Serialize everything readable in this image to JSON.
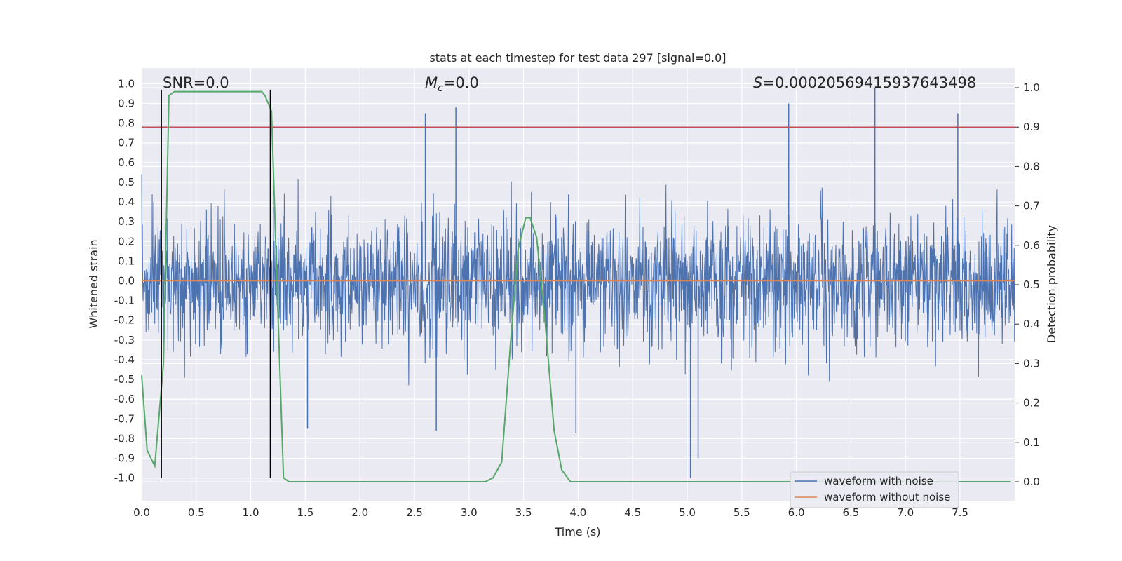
{
  "chart_data": {
    "type": "line",
    "title": "stats at each timestep for test data 297 [signal=0.0]",
    "xlabel": "Time (s)",
    "ylabel": "Whitened strain",
    "y2label": "Detection probability",
    "xlim": [
      0.0,
      8.0
    ],
    "ylim": [
      -1.1,
      1.06
    ],
    "y2lim": [
      -0.05,
      1.03
    ],
    "xticks": [
      "0.0",
      "0.5",
      "1.0",
      "1.5",
      "2.0",
      "2.5",
      "3.0",
      "3.5",
      "4.0",
      "4.5",
      "5.0",
      "5.5",
      "6.0",
      "6.5",
      "7.0",
      "7.5"
    ],
    "yticks": [
      "1.0",
      "0.9",
      "0.8",
      "0.7",
      "0.6",
      "0.5",
      "0.4",
      "0.3",
      "0.2",
      "0.1",
      "0.0",
      "-0.1",
      "-0.2",
      "-0.3",
      "-0.4",
      "-0.5",
      "-0.6",
      "-0.7",
      "-0.8",
      "-0.9",
      "-1.0"
    ],
    "y2ticks": [
      "0.0",
      "0.1",
      "0.2",
      "0.3",
      "0.4",
      "0.5",
      "0.6",
      "0.7",
      "0.8",
      "0.9",
      "1.0"
    ],
    "grid": true,
    "legend_position": "lower-right",
    "annotations": {
      "snr": "SNR=0.0",
      "mc_symbol": "M",
      "mc_sub": "c",
      "mc_value": "=0.0",
      "s_symbol": "S",
      "s_value": "=0.00020569415937643498"
    },
    "series": [
      {
        "name": "waveform with noise",
        "axis": "left",
        "color": "#4c72b0",
        "description_values": {
          "mean": 0.0,
          "typical_range": [
            -0.45,
            0.5
          ],
          "peaks": [
            {
              "x": 2.6,
              "y": 0.85
            },
            {
              "x": 2.88,
              "y": 0.88
            },
            {
              "x": 5.93,
              "y": 0.9
            },
            {
              "x": 6.72,
              "y": 0.98
            },
            {
              "x": 7.48,
              "y": 0.85
            },
            {
              "x": 5.03,
              "y": -1.0
            },
            {
              "x": 5.1,
              "y": -0.9
            },
            {
              "x": 2.7,
              "y": -0.76
            },
            {
              "x": 3.98,
              "y": -0.77
            },
            {
              "x": 1.52,
              "y": -0.75
            }
          ]
        }
      },
      {
        "name": "waveform without noise",
        "axis": "left",
        "color": "#dd8452",
        "x": [
          0.0,
          8.0
        ],
        "y": [
          0.0,
          0.0
        ]
      },
      {
        "name": "",
        "axis": "right",
        "color": "#55a868",
        "x": [
          0.0,
          0.05,
          0.12,
          0.2,
          0.25,
          0.3,
          0.4,
          0.6,
          0.8,
          1.0,
          1.05,
          1.1,
          1.13,
          1.19,
          1.25,
          1.3,
          1.35,
          1.4,
          2.0,
          3.0,
          3.15,
          3.22,
          3.3,
          3.38,
          3.45,
          3.52,
          3.56,
          3.62,
          3.7,
          3.78,
          3.85,
          3.93,
          4.0,
          4.5,
          5.0,
          6.0,
          7.0,
          7.96
        ],
        "y": [
          0.27,
          0.08,
          0.04,
          0.3,
          0.98,
          0.99,
          0.99,
          0.99,
          0.99,
          0.99,
          0.99,
          0.99,
          0.98,
          0.94,
          0.42,
          0.01,
          0.0,
          0.0,
          0.0,
          0.0,
          0.0,
          0.01,
          0.05,
          0.35,
          0.59,
          0.67,
          0.67,
          0.62,
          0.4,
          0.13,
          0.03,
          0.0,
          0.0,
          0.0,
          0.0,
          0.0,
          0.0,
          0.0
        ]
      }
    ],
    "hlines": [
      {
        "axis": "right",
        "y": 0.9,
        "color": "#c44e52"
      }
    ],
    "vlines": [
      {
        "x": 0.18,
        "ymin": -1.0,
        "ymax": 0.97,
        "color": "#000000"
      },
      {
        "x": 1.18,
        "ymin": -1.0,
        "ymax": 0.97,
        "color": "#000000"
      }
    ]
  }
}
